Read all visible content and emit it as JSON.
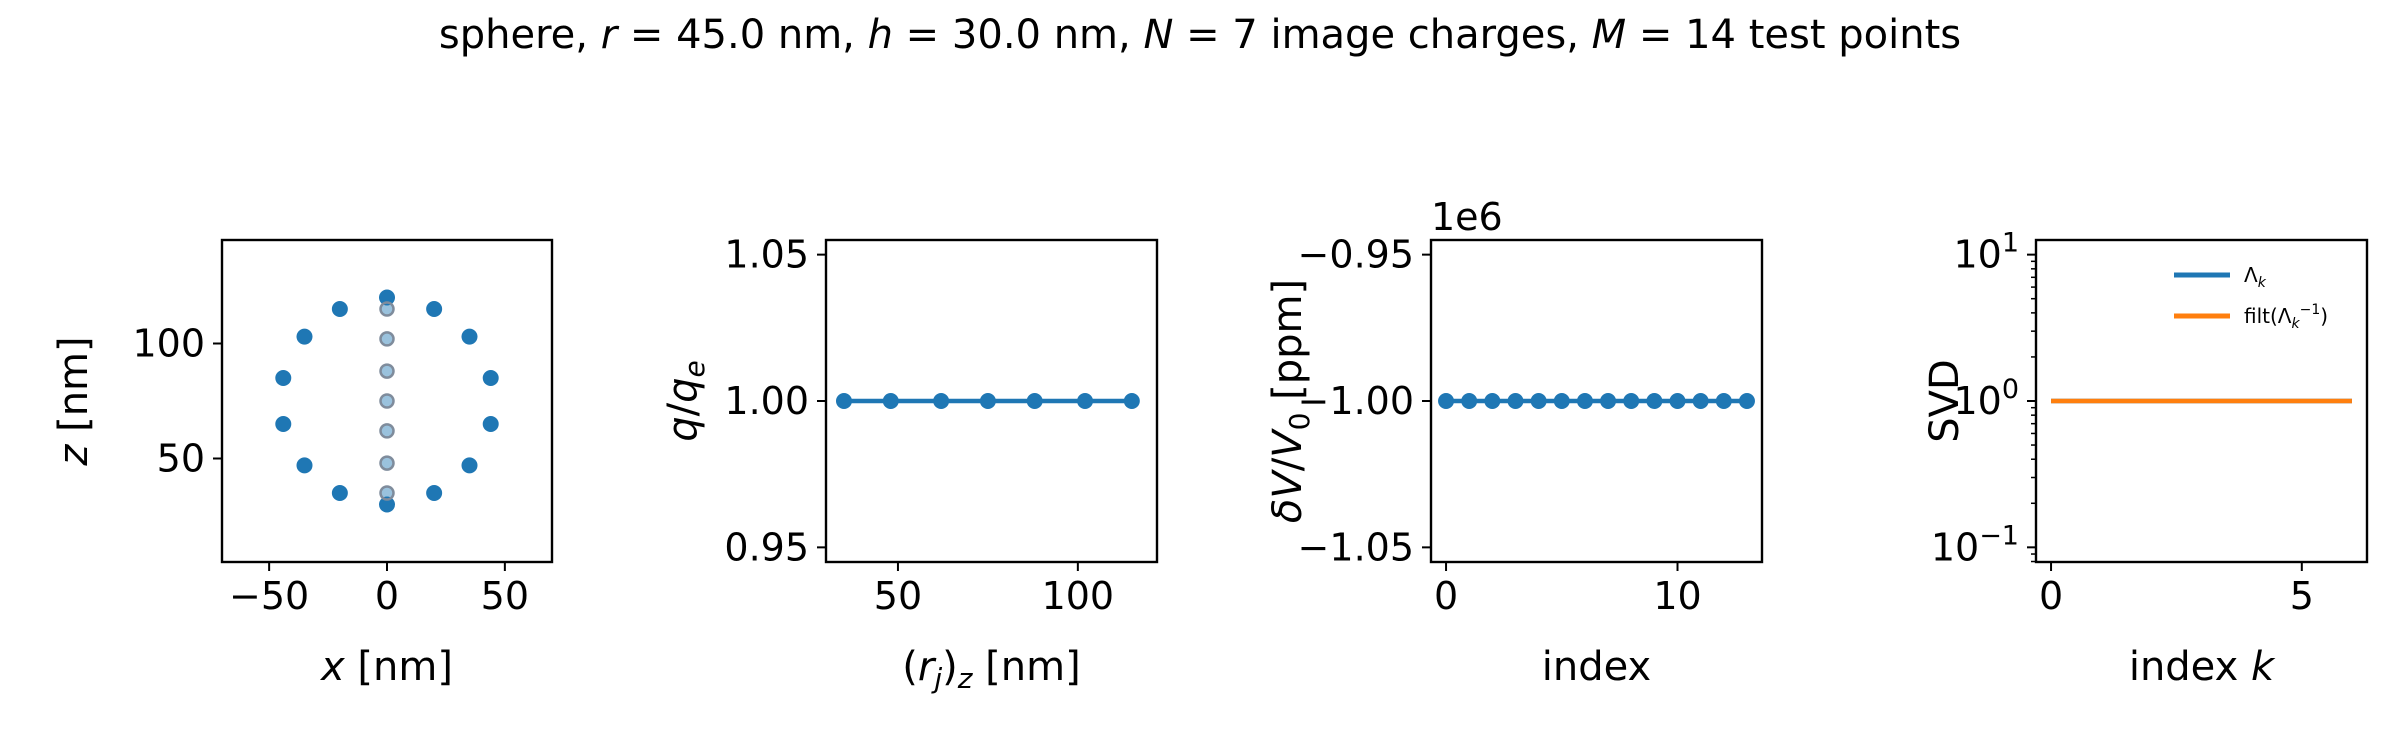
{
  "figure": {
    "title_parts": {
      "p1": "sphere, ",
      "r_sym": "r",
      "p2": " = 45.0 nm, ",
      "h_sym": "h",
      "p3": " = 30.0 nm, ",
      "n_sym": "N",
      "p4": " = 7 image charges, ",
      "m_sym": "M",
      "p5": " = 14 test points"
    }
  },
  "chart_data": [
    {
      "type": "scatter",
      "xlabel": "x [nm]",
      "ylabel": "z [nm]",
      "xlim": [
        -70,
        70
      ],
      "ylim": [
        5,
        145
      ],
      "xticks": [
        -50,
        0,
        50
      ],
      "yticks": [
        50,
        100
      ],
      "grid": false,
      "series": [
        {
          "kind": "test_points",
          "color": "#1f77b4",
          "points": [
            [
              0,
              30
            ],
            [
              20,
              35
            ],
            [
              35,
              47
            ],
            [
              44,
              65
            ],
            [
              44,
              85
            ],
            [
              35,
              103
            ],
            [
              20,
              115
            ],
            [
              0,
              120
            ],
            [
              -20,
              115
            ],
            [
              -35,
              103
            ],
            [
              -44,
              85
            ],
            [
              -44,
              65
            ],
            [
              -35,
              47
            ],
            [
              -20,
              35
            ]
          ]
        },
        {
          "kind": "image_charges",
          "color": "#7f8c9c",
          "points": [
            [
              0,
              35
            ],
            [
              0,
              48
            ],
            [
              0,
              62
            ],
            [
              0,
              75
            ],
            [
              0,
              88
            ],
            [
              0,
              102
            ],
            [
              0,
              115
            ]
          ]
        }
      ]
    },
    {
      "type": "line",
      "xlabel": "(r_j)_z [nm]",
      "ylabel": "q/q_e",
      "xlim": [
        30,
        122
      ],
      "ylim": [
        0.945,
        1.055
      ],
      "xticks": [
        50,
        100
      ],
      "yticks": [
        "0.95",
        "1.00",
        "1.05"
      ],
      "grid": false,
      "series": [
        {
          "color": "#1f77b4",
          "markers": true,
          "x": [
            35,
            48,
            62,
            75,
            88,
            102,
            115
          ],
          "y": [
            1,
            1,
            1,
            1,
            1,
            1,
            1
          ]
        }
      ]
    },
    {
      "type": "line",
      "xlabel": "index",
      "ylabel": "δV/V_0 [ppm]",
      "offset_text": "1e6",
      "xlim": [
        -0.65,
        13.65
      ],
      "ylim": [
        -1.055,
        -0.945
      ],
      "xticks": [
        0,
        10
      ],
      "yticks": [
        "−0.95",
        "−1.00",
        "−1.05"
      ],
      "grid": false,
      "series": [
        {
          "color": "#1f77b4",
          "markers": true,
          "x": [
            0,
            1,
            2,
            3,
            4,
            5,
            6,
            7,
            8,
            9,
            10,
            11,
            12,
            13
          ],
          "y": [
            -1,
            -1,
            -1,
            -1,
            -1,
            -1,
            -1,
            -1,
            -1,
            -1,
            -1,
            -1,
            -1,
            -1
          ]
        }
      ]
    },
    {
      "type": "line",
      "xlabel": "index k",
      "ylabel": "SVD",
      "xlim": [
        -0.3,
        6.3
      ],
      "ylim": [
        0.0794,
        12.59
      ],
      "yscale": "log",
      "xticks": [
        0,
        5
      ],
      "yticks": [
        0.1,
        1,
        10
      ],
      "grid": false,
      "legend_placement": "upper right",
      "series": [
        {
          "name": "Λ_k",
          "color": "#1f77b4",
          "x": [
            0,
            1,
            2,
            3,
            4,
            5,
            6
          ],
          "y": [
            1,
            1,
            1,
            1,
            1,
            1,
            1
          ]
        },
        {
          "name": "filt(Λ_k^-1)",
          "color": "#ff7f0e",
          "x": [
            0,
            1,
            2,
            3,
            4,
            5,
            6
          ],
          "y": [
            1,
            1,
            1,
            1,
            1,
            1,
            1
          ]
        }
      ]
    }
  ]
}
